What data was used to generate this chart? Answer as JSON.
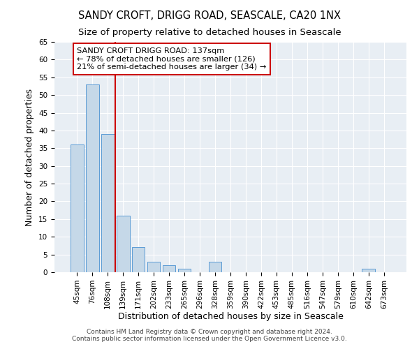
{
  "title": "SANDY CROFT, DRIGG ROAD, SEASCALE, CA20 1NX",
  "subtitle": "Size of property relative to detached houses in Seascale",
  "xlabel": "Distribution of detached houses by size in Seascale",
  "ylabel": "Number of detached properties",
  "bins": [
    "45sqm",
    "76sqm",
    "108sqm",
    "139sqm",
    "171sqm",
    "202sqm",
    "233sqm",
    "265sqm",
    "296sqm",
    "328sqm",
    "359sqm",
    "390sqm",
    "422sqm",
    "453sqm",
    "485sqm",
    "516sqm",
    "547sqm",
    "579sqm",
    "610sqm",
    "642sqm",
    "673sqm"
  ],
  "values": [
    36,
    53,
    39,
    16,
    7,
    3,
    2,
    1,
    0,
    3,
    0,
    0,
    0,
    0,
    0,
    0,
    0,
    0,
    0,
    1,
    0
  ],
  "bar_color": "#c5d8e8",
  "bar_edge_color": "#5b9bd5",
  "vline_color": "#cc0000",
  "annotation_line1": "SANDY CROFT DRIGG ROAD: 137sqm",
  "annotation_line2": "← 78% of detached houses are smaller (126)",
  "annotation_line3": "21% of semi-detached houses are larger (34) →",
  "annotation_box_color": "white",
  "annotation_box_edge_color": "#cc0000",
  "ylim": [
    0,
    65
  ],
  "yticks": [
    0,
    5,
    10,
    15,
    20,
    25,
    30,
    35,
    40,
    45,
    50,
    55,
    60,
    65
  ],
  "background_color": "#e8eef4",
  "grid_color": "white",
  "title_fontsize": 10.5,
  "subtitle_fontsize": 9.5,
  "tick_fontsize": 7.5,
  "label_fontsize": 9,
  "footer": "Contains HM Land Registry data © Crown copyright and database right 2024.\nContains public sector information licensed under the Open Government Licence v3.0.",
  "footer_fontsize": 6.5
}
